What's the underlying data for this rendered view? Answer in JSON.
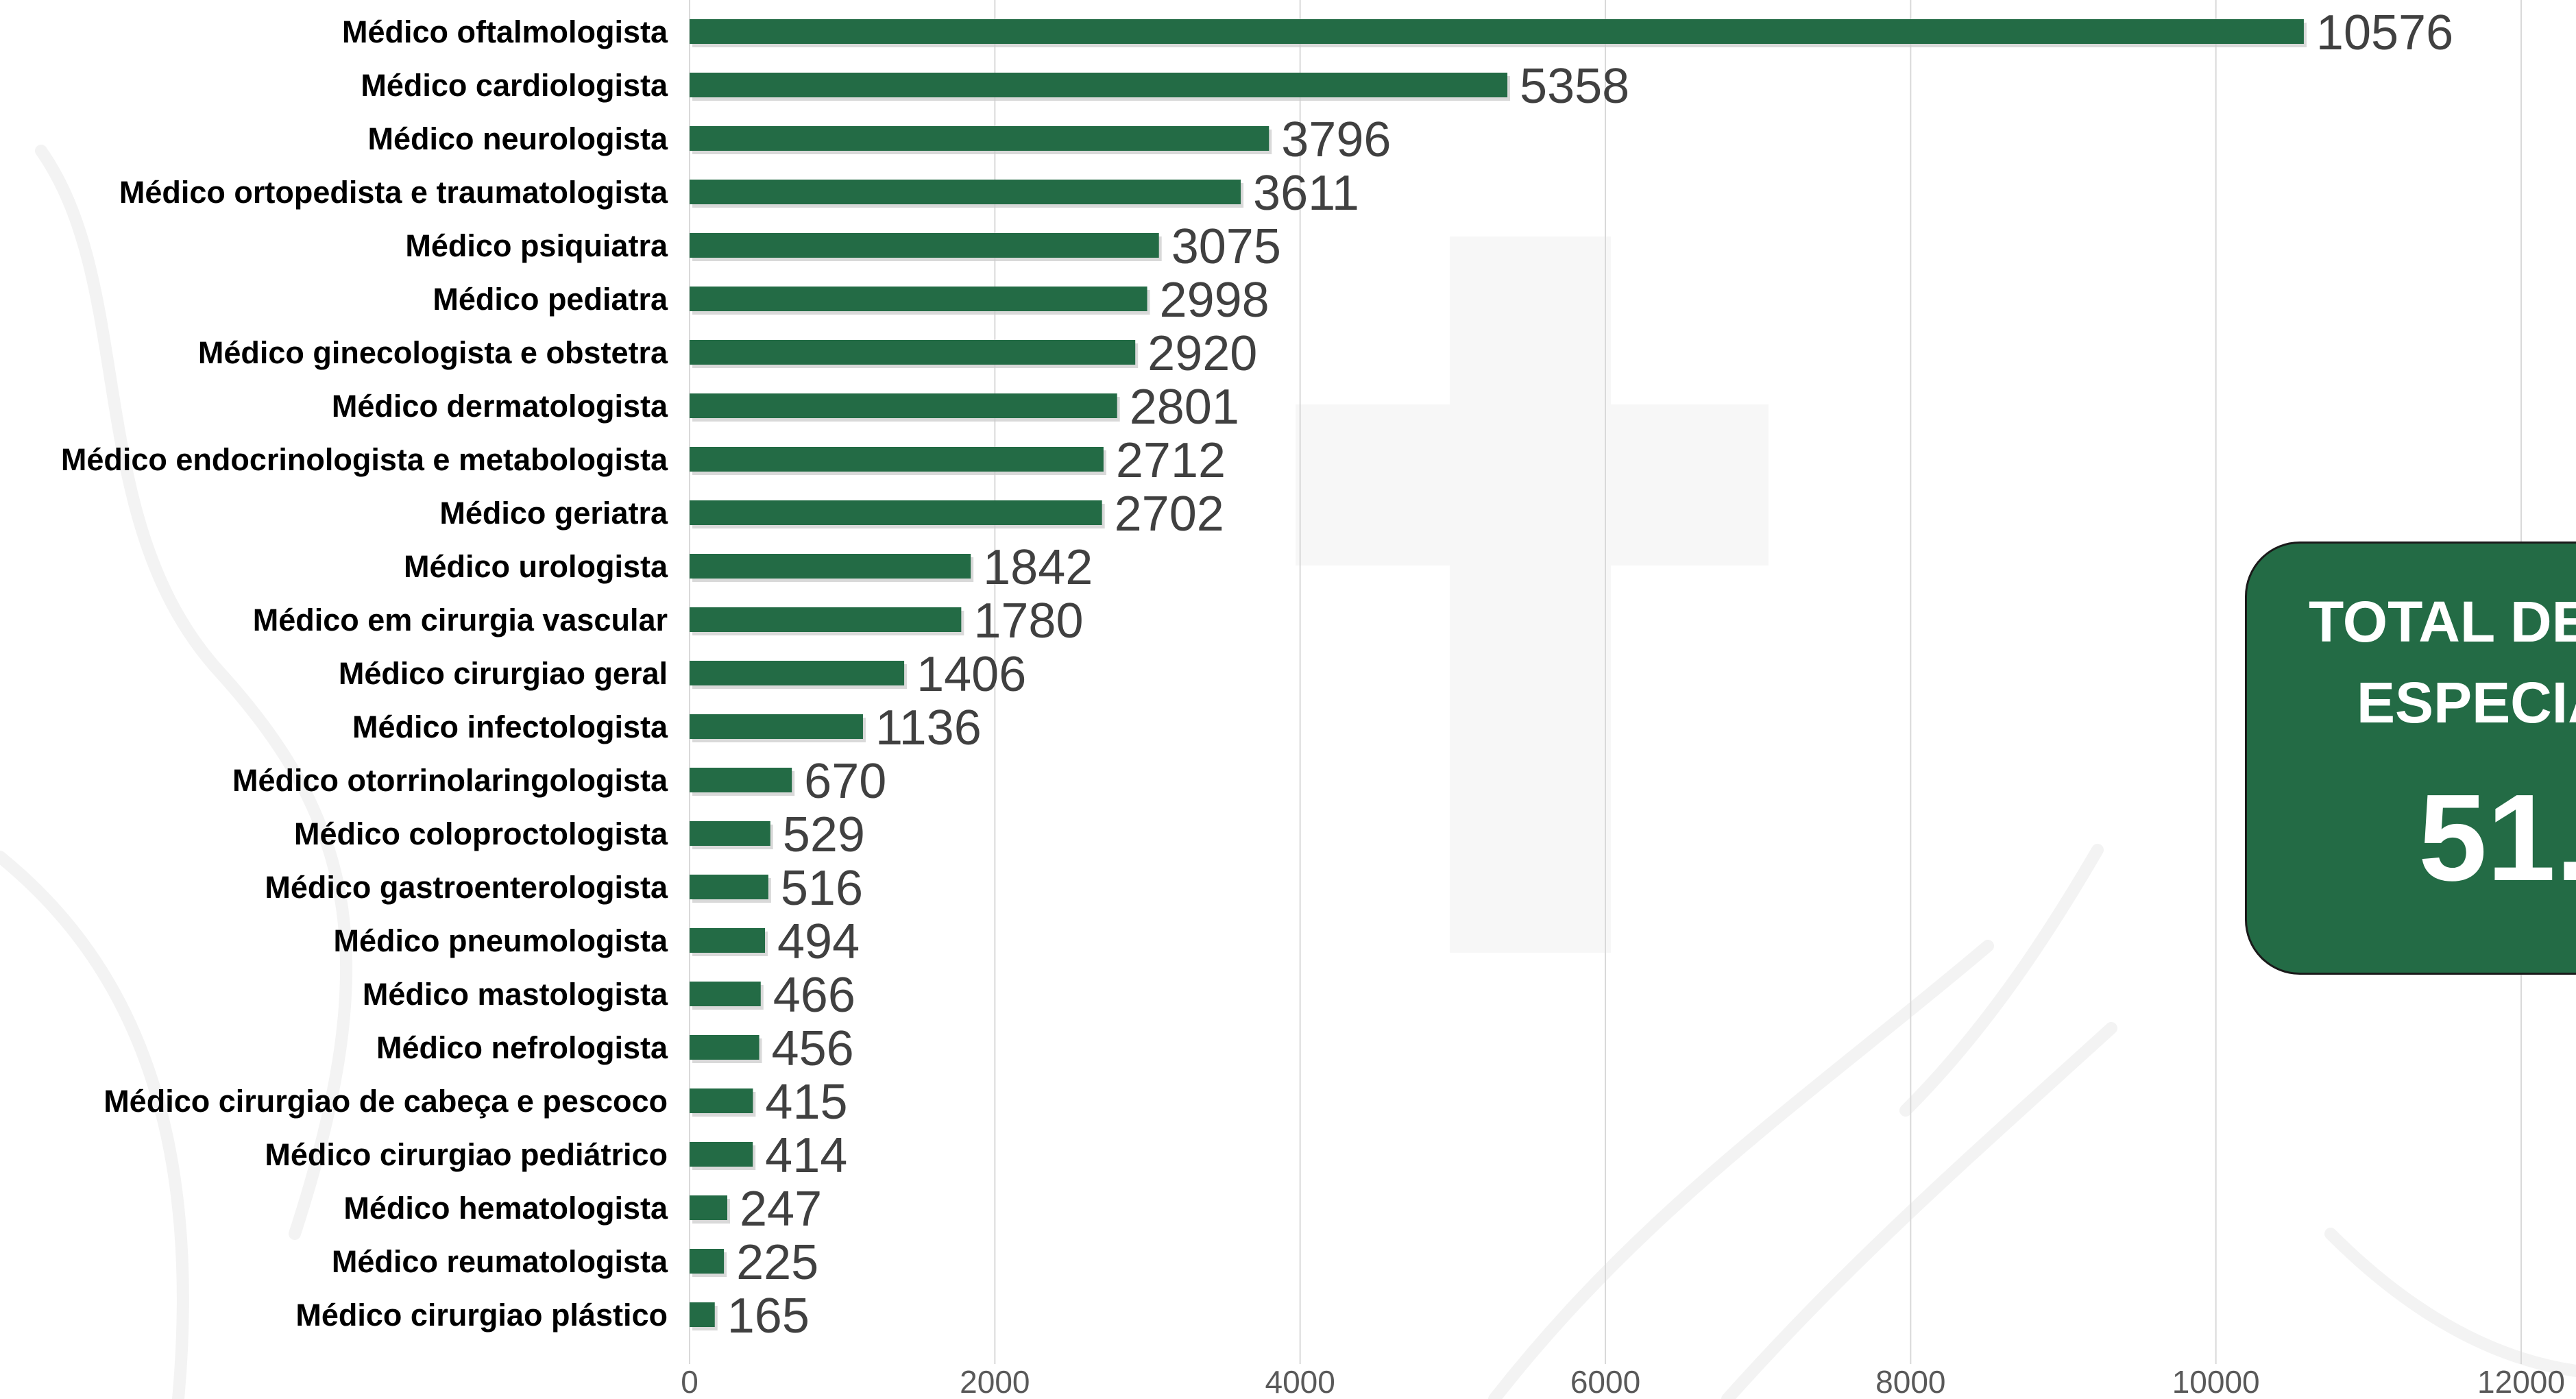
{
  "colors": {
    "bar": "#236b45",
    "grid": "#d9d9d9",
    "box": "#236b45",
    "value_text": "#404040",
    "tick_text": "#595959"
  },
  "total_box": {
    "title": "TOTAL DE\n   ESPECIA",
    "value": "51."
  },
  "chart_data": {
    "type": "bar",
    "orientation": "horizontal",
    "grid": true,
    "xlim": [
      0,
      12000
    ],
    "x_ticks": [
      0,
      2000,
      4000,
      6000,
      8000,
      10000,
      12000
    ],
    "x_tick_labels": [
      "0",
      "2000",
      "4000",
      "6000",
      "8000",
      "10000",
      "12000"
    ],
    "categories": [
      "Médico oftalmologista",
      "Médico cardiologista",
      "Médico neurologista",
      "Médico ortopedista e traumatologista",
      "Médico psiquiatra",
      "Médico pediatra",
      "Médico ginecologista e obstetra",
      "Médico dermatologista",
      "Médico endocrinologista e metabologista",
      "Médico geriatra",
      "Médico urologista",
      "Médico em cirurgia vascular",
      "Médico cirurgiao geral",
      "Médico infectologista",
      "Médico otorrinolaringologista",
      "Médico coloproctologista",
      "Médico gastroenterologista",
      "Médico pneumologista",
      "Médico mastologista",
      "Médico nefrologista",
      "Médico cirurgiao de cabeça e pescoco",
      "Médico cirurgiao pediátrico",
      "Médico hematologista",
      "Médico reumatologista",
      "Médico cirurgiao plástico"
    ],
    "values": [
      10576,
      5358,
      3796,
      3611,
      3075,
      2998,
      2920,
      2801,
      2712,
      2702,
      1842,
      1780,
      1406,
      1136,
      670,
      529,
      516,
      494,
      466,
      456,
      415,
      414,
      247,
      225,
      165
    ],
    "value_labels": [
      "10576",
      "5358",
      "3796",
      "3611",
      "3075",
      "2998",
      "2920",
      "2801",
      "2712",
      "2702",
      "1842",
      "1780",
      "1406",
      "1136",
      "670",
      "529",
      "516",
      "494",
      "466",
      "456",
      "415",
      "414",
      "247",
      "225",
      "165"
    ]
  }
}
